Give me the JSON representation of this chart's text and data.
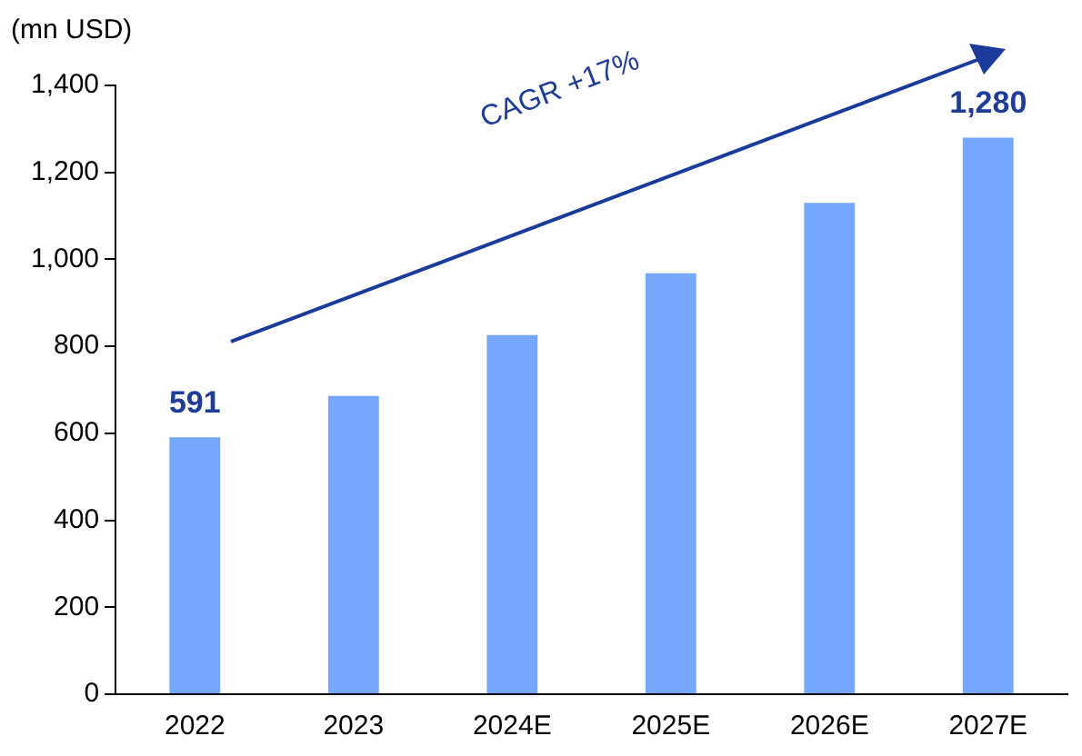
{
  "chart_data": {
    "type": "bar",
    "ylabel": "(mn USD)",
    "categories": [
      "2022",
      "2023",
      "2024E",
      "2025E",
      "2026E",
      "2027E"
    ],
    "values": [
      591,
      686,
      826,
      968,
      1130,
      1280
    ],
    "color": "#76a6fe",
    "value_labels": [
      "591",
      null,
      null,
      null,
      null,
      "1,280"
    ],
    "ylim": [
      0,
      1400
    ],
    "yticks": [
      0,
      {
        "value": 200,
        "label": "200"
      },
      {
        "value": 400,
        "label": "400"
      },
      {
        "value": 600,
        "label": "600"
      },
      {
        "value": 800,
        "label": "800"
      },
      {
        "value": 1000,
        "label": "1,000"
      },
      {
        "value": 1200,
        "label": "1,200"
      },
      {
        "value": 1400,
        "label": "1,400"
      }
    ],
    "grid": false,
    "legend": false,
    "annotations": [
      "CAGR +17%"
    ]
  }
}
